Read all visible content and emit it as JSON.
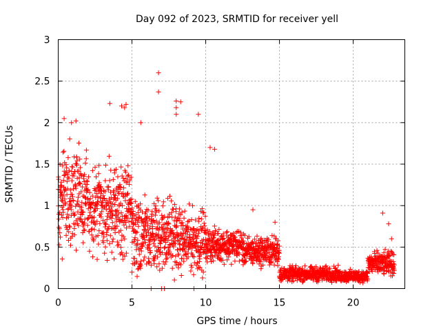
{
  "chart_data": {
    "type": "scatter",
    "title": "Day 092 of 2023, SRMTID for receiver yell",
    "xlabel": "GPS time / hours",
    "ylabel": "SRMTID / TECUs",
    "xlim": [
      0,
      23.5
    ],
    "ylim": [
      0,
      3
    ],
    "xticks": [
      0,
      5,
      10,
      15,
      20
    ],
    "xtick_labels": [
      "0",
      "5",
      "10",
      "15",
      "20"
    ],
    "yticks": [
      0,
      0.5,
      1,
      1.5,
      2,
      2.5,
      3
    ],
    "ytick_labels": [
      "0",
      "0.5",
      "1",
      "1.5",
      "2",
      "2.5",
      "3"
    ],
    "grid": true,
    "marker": "+",
    "color": "#ff0000",
    "series": [
      {
        "name": "SRMTID",
        "segments": [
          {
            "x_start": 0.0,
            "x_end": 2.0,
            "y_low": 0.3,
            "y_high": 1.9,
            "step": 0.01
          },
          {
            "x_start": 2.0,
            "x_end": 5.0,
            "y_low": 0.2,
            "y_high": 1.7,
            "step": 0.01
          },
          {
            "x_start": 5.0,
            "x_end": 8.0,
            "y_low": 0.0,
            "y_high": 1.3,
            "step": 0.01
          },
          {
            "x_start": 8.0,
            "x_end": 10.0,
            "y_low": 0.05,
            "y_high": 1.1,
            "step": 0.01
          },
          {
            "x_start": 10.0,
            "x_end": 12.5,
            "y_low": 0.25,
            "y_high": 0.8,
            "step": 0.01
          },
          {
            "x_start": 12.5,
            "x_end": 15.0,
            "y_low": 0.2,
            "y_high": 0.7,
            "step": 0.01
          },
          {
            "x_start": 15.0,
            "x_end": 19.0,
            "y_low": 0.05,
            "y_high": 0.3,
            "step": 0.01
          },
          {
            "x_start": 19.0,
            "x_end": 21.0,
            "y_low": 0.05,
            "y_high": 0.25,
            "step": 0.01
          },
          {
            "x_start": 21.0,
            "x_end": 22.8,
            "y_low": 0.1,
            "y_high": 0.5,
            "step": 0.01
          }
        ],
        "outliers": [
          {
            "x": 0.4,
            "y": 2.05
          },
          {
            "x": 0.9,
            "y": 2.0
          },
          {
            "x": 1.2,
            "y": 2.02
          },
          {
            "x": 3.5,
            "y": 2.23
          },
          {
            "x": 4.3,
            "y": 2.2
          },
          {
            "x": 4.5,
            "y": 2.18
          },
          {
            "x": 4.6,
            "y": 2.22
          },
          {
            "x": 5.6,
            "y": 2.0
          },
          {
            "x": 6.8,
            "y": 2.6
          },
          {
            "x": 6.8,
            "y": 2.37
          },
          {
            "x": 8.0,
            "y": 2.26
          },
          {
            "x": 8.3,
            "y": 2.25
          },
          {
            "x": 8.0,
            "y": 2.18
          },
          {
            "x": 8.0,
            "y": 2.1
          },
          {
            "x": 9.5,
            "y": 2.1
          },
          {
            "x": 10.3,
            "y": 1.7
          },
          {
            "x": 10.6,
            "y": 1.68
          },
          {
            "x": 13.2,
            "y": 0.95
          },
          {
            "x": 14.7,
            "y": 0.8
          },
          {
            "x": 22.0,
            "y": 0.91
          },
          {
            "x": 22.4,
            "y": 0.78
          },
          {
            "x": 22.6,
            "y": 0.6
          },
          {
            "x": 7.0,
            "y": 0.0
          },
          {
            "x": 6.3,
            "y": 0.0
          },
          {
            "x": 9.2,
            "y": 0.0
          },
          {
            "x": 7.2,
            "y": 0.0
          }
        ]
      }
    ]
  }
}
